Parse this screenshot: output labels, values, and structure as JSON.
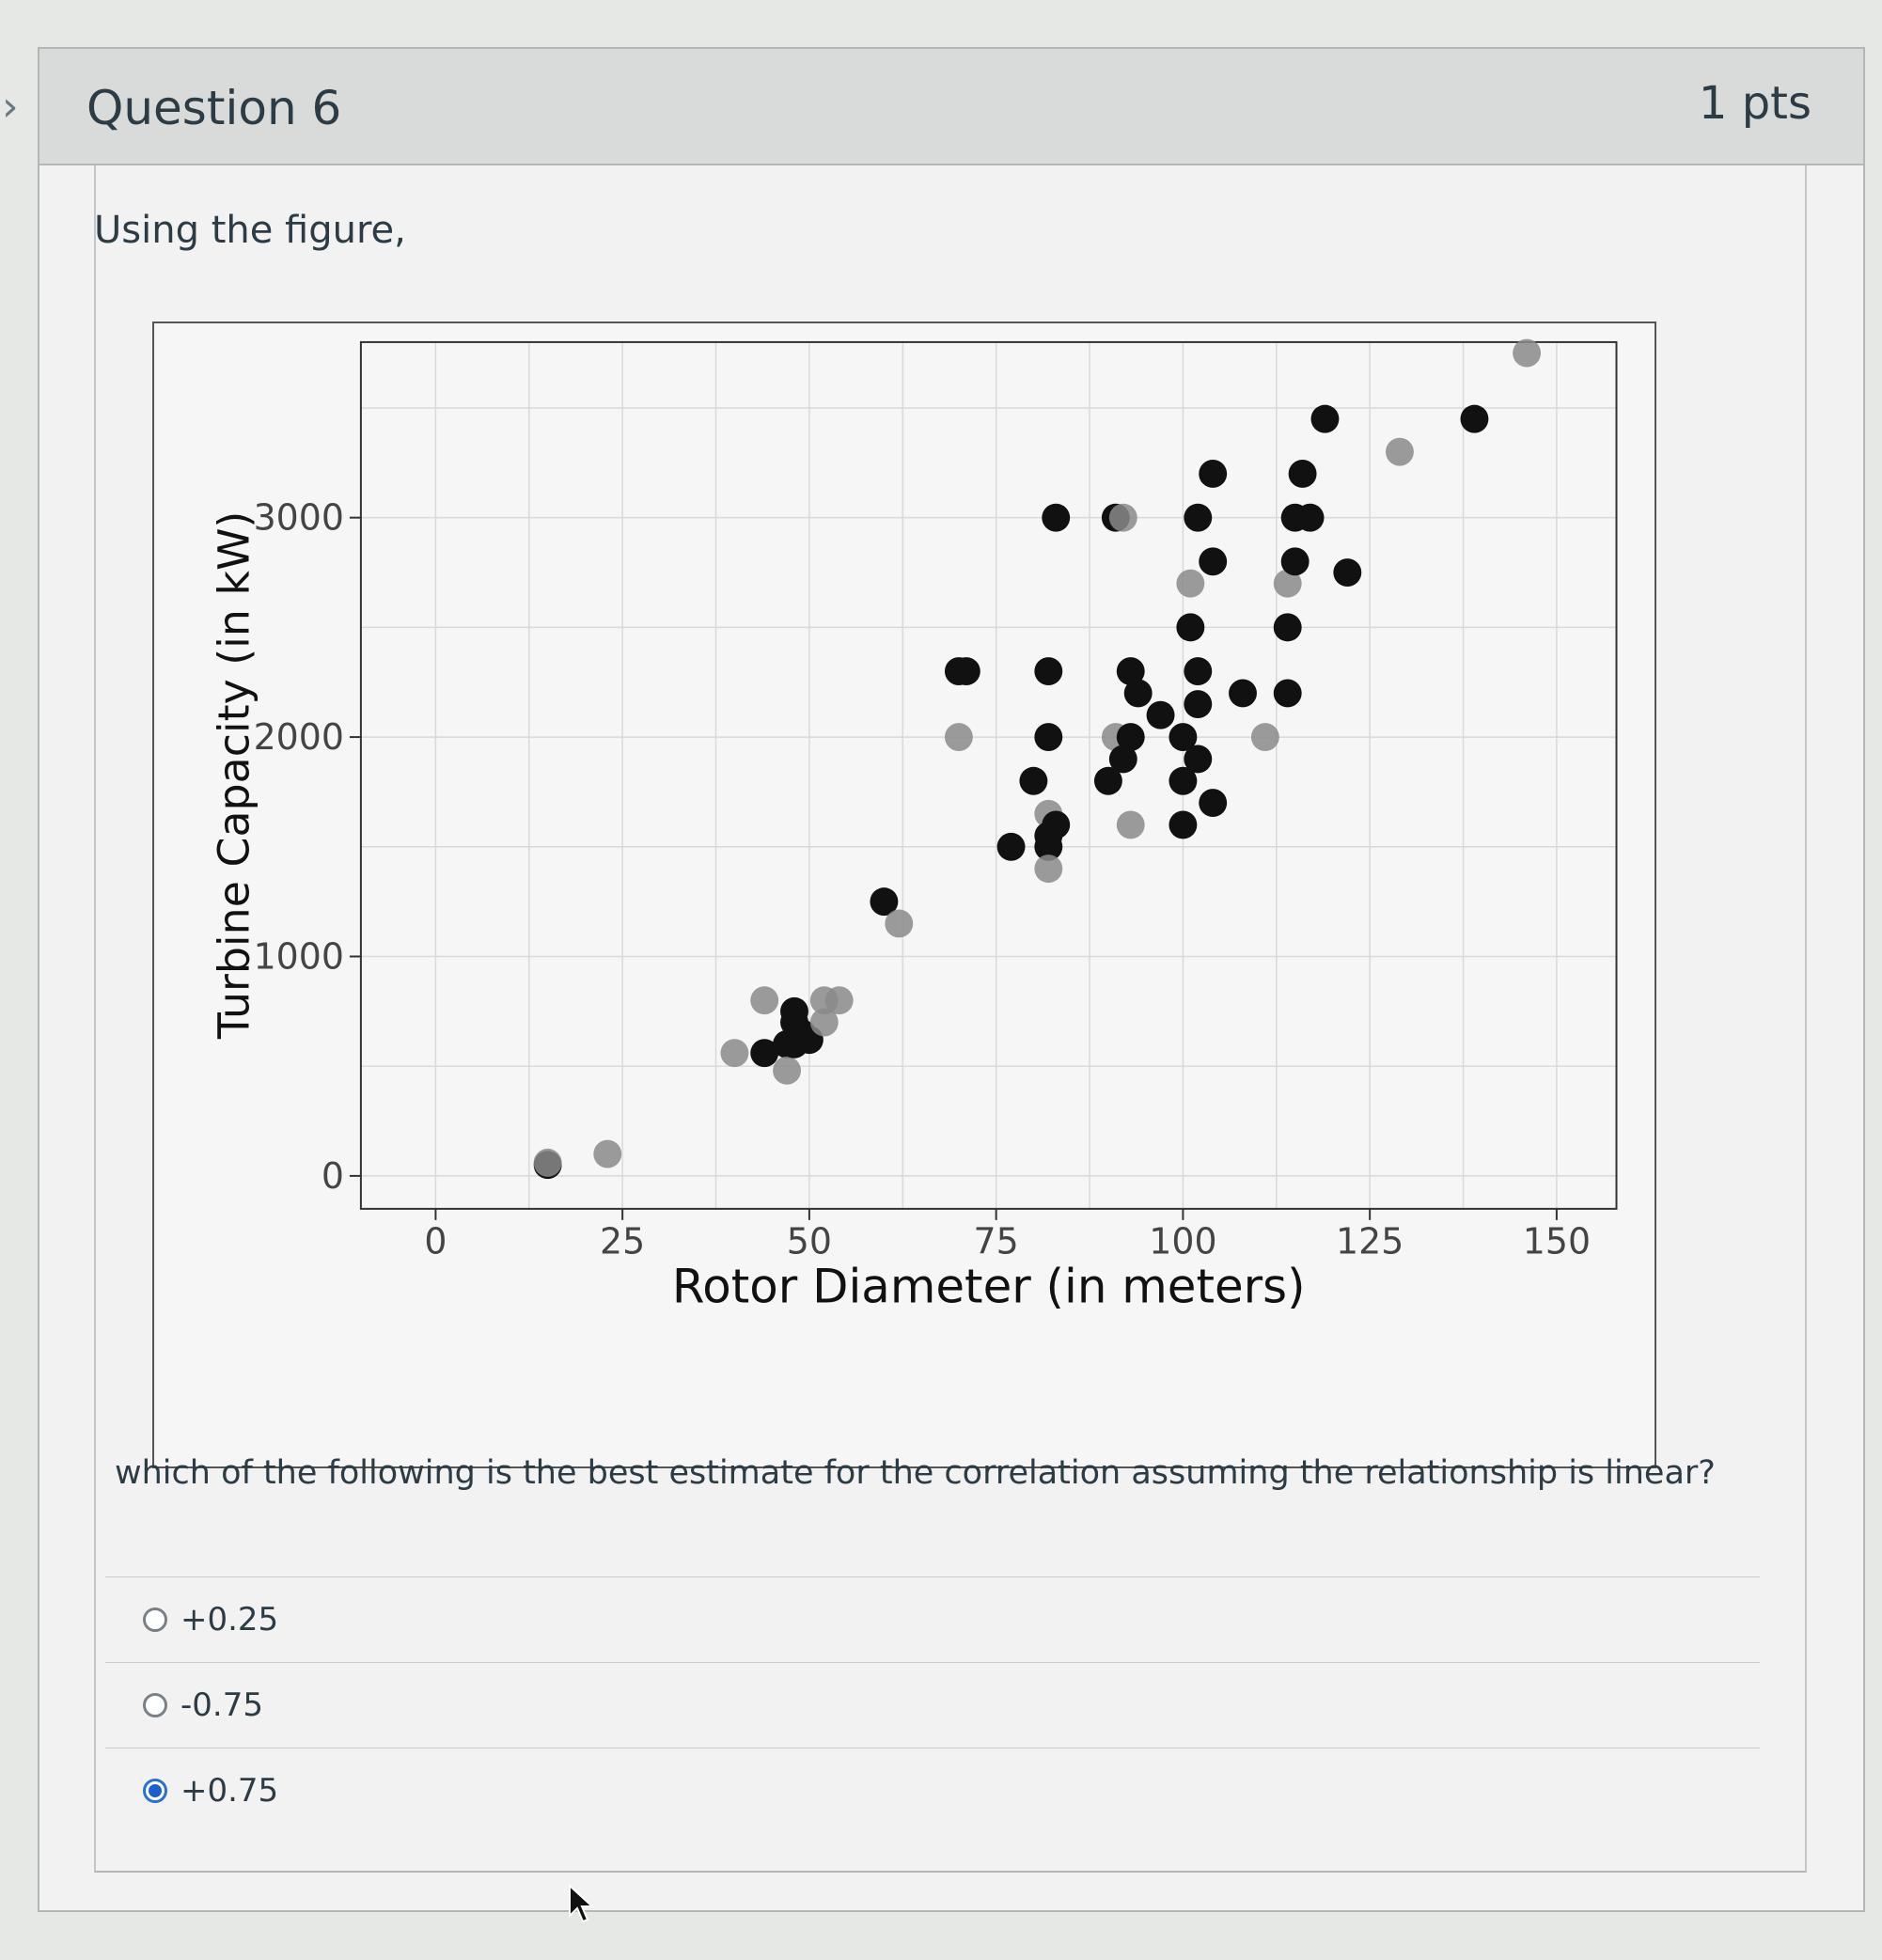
{
  "question": {
    "title": "Question 6",
    "points": "1 pts",
    "intro": "Using the figure,",
    "prompt": "which of the following is the best estimate for the correlation assuming the relationship is linear?"
  },
  "answers": [
    {
      "label": "+0.25",
      "selected": false
    },
    {
      "label": "-0.75",
      "selected": false
    },
    {
      "label": "+0.75",
      "selected": true
    }
  ],
  "icons": {
    "chevron": "chevron-right-icon",
    "cursor": "mouse-pointer-icon",
    "radio": "radio-button-icon"
  },
  "colors": {
    "selected_radio": "#1e5fcf",
    "point_dark": "#111111",
    "point_gray": "#8a8a8a"
  },
  "chart_data": {
    "type": "scatter",
    "title": "",
    "xlabel": "Rotor Diameter (in meters)",
    "ylabel": "Turbine Capacity (in kW)",
    "xlim": [
      -10,
      158
    ],
    "ylim": [
      -150,
      3800
    ],
    "xticks": [
      0,
      25,
      50,
      75,
      100,
      125,
      150
    ],
    "yticks": [
      0,
      1000,
      2000,
      3000
    ],
    "grid": true,
    "legend": "none",
    "points": [
      {
        "x": 15,
        "y": 50,
        "shade": "dark"
      },
      {
        "x": 15,
        "y": 60,
        "shade": "gray"
      },
      {
        "x": 23,
        "y": 100,
        "shade": "gray"
      },
      {
        "x": 40,
        "y": 560,
        "shade": "gray"
      },
      {
        "x": 44,
        "y": 560,
        "shade": "dark"
      },
      {
        "x": 44,
        "y": 800,
        "shade": "gray"
      },
      {
        "x": 47,
        "y": 600,
        "shade": "dark"
      },
      {
        "x": 47,
        "y": 480,
        "shade": "gray"
      },
      {
        "x": 48,
        "y": 700,
        "shade": "dark"
      },
      {
        "x": 48,
        "y": 750,
        "shade": "dark"
      },
      {
        "x": 48,
        "y": 600,
        "shade": "dark"
      },
      {
        "x": 49,
        "y": 650,
        "shade": "dark"
      },
      {
        "x": 50,
        "y": 620,
        "shade": "dark"
      },
      {
        "x": 52,
        "y": 700,
        "shade": "gray"
      },
      {
        "x": 52,
        "y": 800,
        "shade": "gray"
      },
      {
        "x": 54,
        "y": 800,
        "shade": "gray"
      },
      {
        "x": 60,
        "y": 1250,
        "shade": "dark"
      },
      {
        "x": 62,
        "y": 1150,
        "shade": "gray"
      },
      {
        "x": 70,
        "y": 2000,
        "shade": "gray"
      },
      {
        "x": 70,
        "y": 2300,
        "shade": "dark"
      },
      {
        "x": 71,
        "y": 2300,
        "shade": "dark"
      },
      {
        "x": 77,
        "y": 1500,
        "shade": "dark"
      },
      {
        "x": 80,
        "y": 1800,
        "shade": "dark"
      },
      {
        "x": 82,
        "y": 2000,
        "shade": "dark"
      },
      {
        "x": 82,
        "y": 2300,
        "shade": "dark"
      },
      {
        "x": 82,
        "y": 1650,
        "shade": "gray"
      },
      {
        "x": 82,
        "y": 1550,
        "shade": "dark"
      },
      {
        "x": 82,
        "y": 1500,
        "shade": "dark"
      },
      {
        "x": 82,
        "y": 1400,
        "shade": "gray"
      },
      {
        "x": 83,
        "y": 1600,
        "shade": "dark"
      },
      {
        "x": 83,
        "y": 3000,
        "shade": "dark"
      },
      {
        "x": 91,
        "y": 3000,
        "shade": "dark"
      },
      {
        "x": 92,
        "y": 3000,
        "shade": "gray"
      },
      {
        "x": 90,
        "y": 1800,
        "shade": "dark"
      },
      {
        "x": 91,
        "y": 2000,
        "shade": "gray"
      },
      {
        "x": 92,
        "y": 1900,
        "shade": "dark"
      },
      {
        "x": 93,
        "y": 2000,
        "shade": "dark"
      },
      {
        "x": 93,
        "y": 2300,
        "shade": "dark"
      },
      {
        "x": 94,
        "y": 2200,
        "shade": "dark"
      },
      {
        "x": 93,
        "y": 1600,
        "shade": "gray"
      },
      {
        "x": 97,
        "y": 2100,
        "shade": "dark"
      },
      {
        "x": 100,
        "y": 1600,
        "shade": "dark"
      },
      {
        "x": 100,
        "y": 1800,
        "shade": "dark"
      },
      {
        "x": 100,
        "y": 2000,
        "shade": "dark"
      },
      {
        "x": 101,
        "y": 2500,
        "shade": "dark"
      },
      {
        "x": 101,
        "y": 2700,
        "shade": "gray"
      },
      {
        "x": 102,
        "y": 2300,
        "shade": "dark"
      },
      {
        "x": 102,
        "y": 2150,
        "shade": "dark"
      },
      {
        "x": 102,
        "y": 1900,
        "shade": "dark"
      },
      {
        "x": 102,
        "y": 3000,
        "shade": "dark"
      },
      {
        "x": 104,
        "y": 1700,
        "shade": "dark"
      },
      {
        "x": 104,
        "y": 2800,
        "shade": "dark"
      },
      {
        "x": 104,
        "y": 3200,
        "shade": "dark"
      },
      {
        "x": 108,
        "y": 2200,
        "shade": "dark"
      },
      {
        "x": 111,
        "y": 2000,
        "shade": "gray"
      },
      {
        "x": 114,
        "y": 2200,
        "shade": "dark"
      },
      {
        "x": 114,
        "y": 2500,
        "shade": "dark"
      },
      {
        "x": 114,
        "y": 2700,
        "shade": "gray"
      },
      {
        "x": 115,
        "y": 2800,
        "shade": "dark"
      },
      {
        "x": 115,
        "y": 3000,
        "shade": "dark"
      },
      {
        "x": 116,
        "y": 3200,
        "shade": "dark"
      },
      {
        "x": 117,
        "y": 3000,
        "shade": "dark"
      },
      {
        "x": 119,
        "y": 3450,
        "shade": "dark"
      },
      {
        "x": 122,
        "y": 2750,
        "shade": "dark"
      },
      {
        "x": 129,
        "y": 3300,
        "shade": "gray"
      },
      {
        "x": 139,
        "y": 3450,
        "shade": "dark"
      },
      {
        "x": 146,
        "y": 3750,
        "shade": "gray"
      }
    ]
  }
}
